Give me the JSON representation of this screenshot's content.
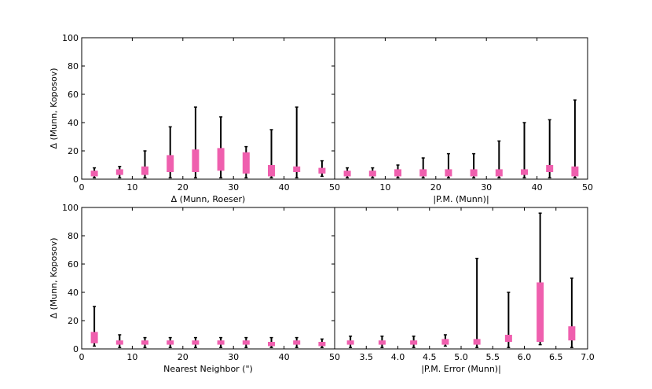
{
  "chart_data": [
    {
      "type": "box",
      "panel": "top-left",
      "xlabel": "Δ (Munn, Roeser)",
      "ylabel": "Δ (Munn, Koposov)",
      "xlim": [
        0,
        50
      ],
      "ylim": [
        0,
        100
      ],
      "xticks": [
        0,
        10,
        20,
        30,
        40,
        50
      ],
      "xtick_labels": [
        "0",
        "10",
        "20",
        "30",
        "40",
        "50"
      ],
      "yticks": [
        0,
        20,
        40,
        60,
        80,
        100
      ],
      "ytick_labels": [
        "0",
        "20",
        "40",
        "60",
        "80",
        "100"
      ],
      "boxes": [
        {
          "x": 2.5,
          "lo": 1,
          "q1": 2,
          "q3": 6,
          "hi": 8
        },
        {
          "x": 7.5,
          "lo": 1,
          "q1": 3,
          "q3": 7,
          "hi": 9
        },
        {
          "x": 12.5,
          "lo": 1,
          "q1": 3,
          "q3": 9,
          "hi": 20
        },
        {
          "x": 17.5,
          "lo": 1,
          "q1": 5,
          "q3": 17,
          "hi": 37
        },
        {
          "x": 22.5,
          "lo": 1,
          "q1": 5,
          "q3": 21,
          "hi": 51
        },
        {
          "x": 27.5,
          "lo": 1,
          "q1": 6,
          "q3": 22,
          "hi": 44
        },
        {
          "x": 32.5,
          "lo": 1,
          "q1": 4,
          "q3": 19,
          "hi": 23
        },
        {
          "x": 37.5,
          "lo": 1,
          "q1": 2,
          "q3": 10,
          "hi": 35
        },
        {
          "x": 42.5,
          "lo": 1,
          "q1": 5,
          "q3": 9,
          "hi": 51
        },
        {
          "x": 47.5,
          "lo": 2,
          "q1": 4,
          "q3": 8,
          "hi": 13
        }
      ]
    },
    {
      "type": "box",
      "panel": "top-right",
      "xlabel": "|P.M. (Munn)|",
      "ylabel": "",
      "xlim": [
        0,
        50
      ],
      "ylim": [
        0,
        100
      ],
      "xticks": [
        10,
        20,
        30,
        40,
        50
      ],
      "xtick_labels": [
        "10",
        "20",
        "30",
        "40",
        "50"
      ],
      "yticks": [],
      "ytick_labels": [],
      "boxes": [
        {
          "x": 2.5,
          "lo": 1,
          "q1": 2,
          "q3": 6,
          "hi": 8
        },
        {
          "x": 7.5,
          "lo": 1,
          "q1": 2,
          "q3": 6,
          "hi": 8
        },
        {
          "x": 12.5,
          "lo": 1,
          "q1": 2,
          "q3": 7,
          "hi": 10
        },
        {
          "x": 17.5,
          "lo": 1,
          "q1": 2,
          "q3": 7,
          "hi": 15
        },
        {
          "x": 22.5,
          "lo": 1,
          "q1": 2,
          "q3": 7,
          "hi": 18
        },
        {
          "x": 27.5,
          "lo": 1,
          "q1": 2,
          "q3": 7,
          "hi": 18
        },
        {
          "x": 32.5,
          "lo": 1,
          "q1": 2,
          "q3": 7,
          "hi": 27
        },
        {
          "x": 37.5,
          "lo": 1,
          "q1": 3,
          "q3": 7,
          "hi": 40
        },
        {
          "x": 42.5,
          "lo": 1,
          "q1": 5,
          "q3": 10,
          "hi": 42
        },
        {
          "x": 47.5,
          "lo": 1,
          "q1": 2,
          "q3": 9,
          "hi": 56
        }
      ]
    },
    {
      "type": "box",
      "panel": "bottom-left",
      "xlabel": "Nearest Neighbor (\")",
      "ylabel": "Δ (Munn, Koposov)",
      "xlim": [
        0,
        50
      ],
      "ylim": [
        0,
        100
      ],
      "xticks": [
        0,
        10,
        20,
        30,
        40,
        50
      ],
      "xtick_labels": [
        "0",
        "10",
        "20",
        "30",
        "40",
        "50"
      ],
      "yticks": [
        0,
        20,
        40,
        60,
        80,
        100
      ],
      "ytick_labels": [
        "0",
        "20",
        "40",
        "60",
        "80",
        "100"
      ],
      "boxes": [
        {
          "x": 2.5,
          "lo": 2,
          "q1": 4,
          "q3": 12,
          "hi": 30
        },
        {
          "x": 7.5,
          "lo": 1,
          "q1": 3,
          "q3": 6,
          "hi": 10
        },
        {
          "x": 12.5,
          "lo": 1,
          "q1": 3,
          "q3": 6,
          "hi": 8
        },
        {
          "x": 17.5,
          "lo": 1,
          "q1": 3,
          "q3": 6,
          "hi": 8
        },
        {
          "x": 22.5,
          "lo": 1,
          "q1": 3,
          "q3": 6,
          "hi": 8
        },
        {
          "x": 27.5,
          "lo": 1,
          "q1": 3,
          "q3": 6,
          "hi": 8
        },
        {
          "x": 32.5,
          "lo": 1,
          "q1": 3,
          "q3": 6,
          "hi": 8
        },
        {
          "x": 37.5,
          "lo": 1,
          "q1": 2,
          "q3": 5,
          "hi": 8
        },
        {
          "x": 42.5,
          "lo": 1,
          "q1": 3,
          "q3": 6,
          "hi": 8
        },
        {
          "x": 47.5,
          "lo": 1,
          "q1": 2,
          "q3": 5,
          "hi": 7
        }
      ]
    },
    {
      "type": "box",
      "panel": "bottom-right",
      "xlabel": "|P.M. Error (Munn)|",
      "ylabel": "",
      "xlim": [
        3.0,
        7.0
      ],
      "ylim": [
        0,
        100
      ],
      "xticks": [
        3.5,
        4.0,
        4.5,
        5.0,
        5.5,
        6.0,
        6.5,
        7.0
      ],
      "xtick_labels": [
        "3.5",
        "4.0",
        "4.5",
        "5.0",
        "5.5",
        "6.0",
        "6.5",
        "7.0"
      ],
      "yticks": [],
      "ytick_labels": [],
      "boxes": [
        {
          "x": 3.25,
          "lo": 1,
          "q1": 3,
          "q3": 6,
          "hi": 9
        },
        {
          "x": 3.75,
          "lo": 1,
          "q1": 3,
          "q3": 6,
          "hi": 9
        },
        {
          "x": 4.25,
          "lo": 1,
          "q1": 3,
          "q3": 6,
          "hi": 9
        },
        {
          "x": 4.75,
          "lo": 2,
          "q1": 3,
          "q3": 7,
          "hi": 10
        },
        {
          "x": 5.25,
          "lo": 1,
          "q1": 3,
          "q3": 7,
          "hi": 64
        },
        {
          "x": 5.75,
          "lo": 1,
          "q1": 5,
          "q3": 10,
          "hi": 40
        },
        {
          "x": 6.25,
          "lo": 3,
          "q1": 5,
          "q3": 47,
          "hi": 96
        },
        {
          "x": 6.75,
          "lo": 1,
          "q1": 6,
          "q3": 16,
          "hi": 50
        }
      ]
    }
  ],
  "colors": {
    "box": "#ef5fae",
    "whisker": "#000000"
  }
}
